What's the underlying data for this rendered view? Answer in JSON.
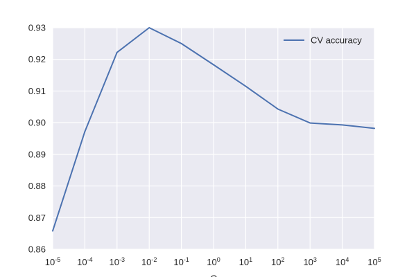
{
  "chart_data": {
    "type": "line",
    "title": "",
    "xlabel": "C",
    "ylabel": "",
    "xscale": "log",
    "grid": true,
    "legend_position": "top-right",
    "x_tick_labels": [
      {
        "base": "10",
        "exp": "-5"
      },
      {
        "base": "10",
        "exp": "-4"
      },
      {
        "base": "10",
        "exp": "-3"
      },
      {
        "base": "10",
        "exp": "-2"
      },
      {
        "base": "10",
        "exp": "-1"
      },
      {
        "base": "10",
        "exp": "0"
      },
      {
        "base": "10",
        "exp": "1"
      },
      {
        "base": "10",
        "exp": "2"
      },
      {
        "base": "10",
        "exp": "3"
      },
      {
        "base": "10",
        "exp": "4"
      },
      {
        "base": "10",
        "exp": "5"
      }
    ],
    "y_ticks": [
      0.86,
      0.87,
      0.88,
      0.89,
      0.9,
      0.91,
      0.92,
      0.93
    ],
    "y_tick_labels": [
      "0.86",
      "0.87",
      "0.88",
      "0.89",
      "0.90",
      "0.91",
      "0.92",
      "0.93"
    ],
    "xlim_exp": [
      -5,
      5
    ],
    "ylim": [
      0.86,
      0.93
    ],
    "series": [
      {
        "name": "CV accuracy",
        "color": "#4c72b0",
        "x_exp": [
          -5,
          -4,
          -3,
          -2,
          -1,
          0,
          1,
          2,
          3,
          4,
          5
        ],
        "values": [
          0.8658,
          0.8972,
          0.9222,
          0.93,
          0.925,
          0.9183,
          0.9115,
          0.9043,
          0.8999,
          0.8993,
          0.8982
        ]
      }
    ],
    "colors": {
      "plot_background": "#eaeaf2",
      "grid": "#ffffff",
      "text": "#262626"
    }
  }
}
